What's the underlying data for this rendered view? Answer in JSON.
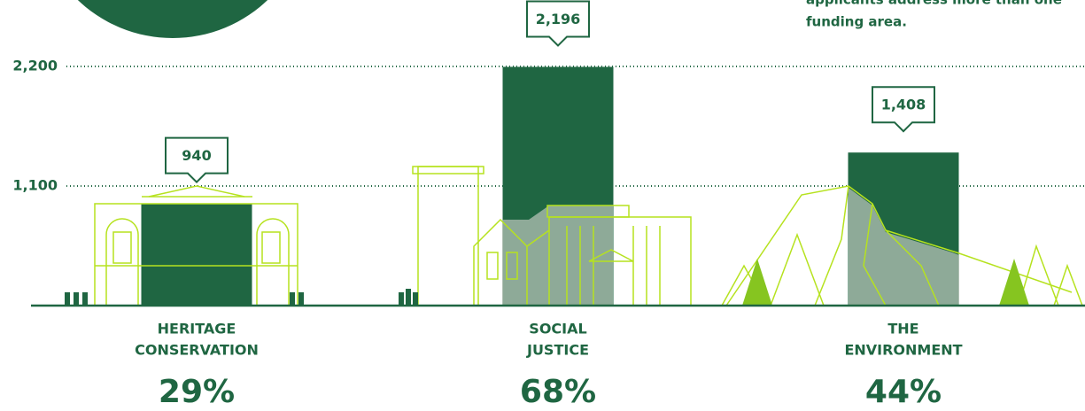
{
  "chart_data": {
    "type": "bar",
    "annotation": [
      "applicants address more than one",
      "funding area."
    ],
    "categories": [
      [
        "HERITAGE",
        "CONSERVATION"
      ],
      [
        "SOCIAL",
        "JUSTICE"
      ],
      [
        "THE",
        "ENVIRONMENT"
      ]
    ],
    "values": [
      940,
      2196,
      1408
    ],
    "value_labels": [
      "940",
      "2,196",
      "1,408"
    ],
    "percent": {
      "values": [
        29,
        68,
        44
      ],
      "value_labels": [
        "29%",
        "68%",
        "44%"
      ]
    },
    "color": "#1f6642",
    "ylim": [
      0,
      2200
    ],
    "yticks": [
      {
        "value": 1100,
        "label": "1,100"
      },
      {
        "value": 2200,
        "label": "2,200"
      }
    ],
    "grid": true
  }
}
